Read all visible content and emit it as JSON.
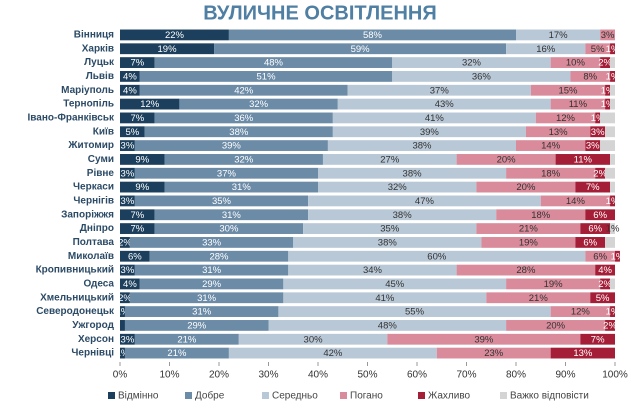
{
  "chart_data": {
    "type": "stacked-bar-horizontal",
    "title": "ВУЛИЧНЕ ОСВІТЛЕННЯ",
    "categories": [
      "Вінниця",
      "Харків",
      "Луцьк",
      "Львів",
      "Маріуполь",
      "Тернопіль",
      "Івано-Франківськ",
      "Київ",
      "Житомир",
      "Суми",
      "Рівне",
      "Черкаси",
      "Чернігів",
      "Запоріжжя",
      "Дніпро",
      "Полтава",
      "Миколаїв",
      "Кропивницький",
      "Одеса",
      "Хмельницький",
      "Северодонецьк",
      "Ужгород",
      "Херсон",
      "Чернівці"
    ],
    "series": [
      {
        "name": "Відмінно",
        "color": "#1b3f5c",
        "values": [
          22,
          19,
          7,
          4,
          4,
          12,
          7,
          5,
          3,
          9,
          3,
          9,
          3,
          7,
          7,
          2,
          6,
          3,
          4,
          2,
          1,
          1,
          3,
          1
        ],
        "value_labels": [
          "22%",
          "19%",
          "7%",
          "4%",
          "4%",
          "12%",
          "7%",
          "5%",
          "3%",
          "9%",
          "3%",
          "9%",
          "3%",
          "7%",
          "7%",
          "2%",
          "6%",
          "3%",
          "4%",
          "2%",
          "1%",
          null,
          "3%",
          "1%"
        ]
      },
      {
        "name": "Добре",
        "color": "#6b8ba7",
        "values": [
          58,
          59,
          48,
          51,
          42,
          32,
          36,
          38,
          39,
          32,
          37,
          31,
          35,
          31,
          30,
          33,
          28,
          31,
          29,
          31,
          31,
          29,
          21,
          21
        ],
        "value_labels": [
          "58%",
          "59%",
          "48%",
          "51%",
          "42%",
          "32%",
          "36%",
          "38%",
          "39%",
          "32%",
          "37%",
          "31%",
          "35%",
          "31%",
          "30%",
          "33%",
          "28%",
          "31%",
          "29%",
          "31%",
          "31%",
          "29%",
          "21%",
          "21%"
        ]
      },
      {
        "name": "Середньо",
        "color": "#b9c8d7",
        "values": [
          17,
          16,
          32,
          36,
          37,
          43,
          41,
          39,
          38,
          27,
          38,
          32,
          47,
          38,
          35,
          38,
          60,
          34,
          45,
          41,
          55,
          48,
          30,
          42
        ],
        "value_labels": [
          "17%",
          "16%",
          "32%",
          "36%",
          "37%",
          "43%",
          "41%",
          "39%",
          "38%",
          "27%",
          "38%",
          "32%",
          "47%",
          "38%",
          "35%",
          "38%",
          "60%",
          "34%",
          "45%",
          "41%",
          "55%",
          "48%",
          "30%",
          "42%"
        ]
      },
      {
        "name": "Погано",
        "color": "#d98b9b",
        "values": [
          3,
          5,
          10,
          8,
          15,
          11,
          12,
          13,
          14,
          20,
          18,
          20,
          14,
          18,
          21,
          19,
          6,
          28,
          19,
          21,
          12,
          20,
          39,
          23
        ],
        "value_labels": [
          "3%",
          "5%",
          "10%",
          "8%",
          "15%",
          "11%",
          "12%",
          "13%",
          "14%",
          "20%",
          "18%",
          "20%",
          "14%",
          "18%",
          "21%",
          "19%",
          "6%",
          "28%",
          "19%",
          "21%",
          "12%",
          "20%",
          "39%",
          "23%"
        ]
      },
      {
        "name": "Жахливо",
        "color": "#a51e37",
        "values": [
          0,
          1,
          2,
          1,
          1,
          1,
          1,
          3,
          3,
          11,
          2,
          7,
          1,
          6,
          6,
          6,
          1,
          4,
          2,
          5,
          1,
          2,
          7,
          13
        ],
        "value_labels": [
          null,
          "1%",
          "2%",
          "1%",
          "1%",
          "1%",
          "1%",
          "3%",
          "3%",
          "11%",
          "2%",
          "7%",
          "1%",
          "6%",
          "6%",
          "6%",
          "1%",
          "4%",
          "2%",
          "5%",
          "1%",
          "2%",
          "7%",
          "13%"
        ]
      },
      {
        "name": "Важко відповісти",
        "color": "#d4d4d4",
        "values": [
          0,
          0,
          1,
          0,
          1,
          1,
          3,
          2,
          3,
          1,
          2,
          1,
          0,
          0,
          1,
          2,
          0,
          0,
          1,
          0,
          0,
          0,
          0,
          0
        ],
        "value_labels": [
          null,
          null,
          null,
          null,
          null,
          null,
          null,
          null,
          null,
          null,
          null,
          null,
          null,
          null,
          "1%",
          null,
          null,
          null,
          null,
          null,
          null,
          null,
          null,
          null
        ]
      }
    ],
    "xlim": [
      0,
      100
    ],
    "xticks": [
      {
        "value": 0,
        "label": "0%"
      },
      {
        "value": 10,
        "label": "10%"
      },
      {
        "value": 20,
        "label": "20%"
      },
      {
        "value": 30,
        "label": "30%"
      },
      {
        "value": 40,
        "label": "40%"
      },
      {
        "value": 50,
        "label": "50%"
      },
      {
        "value": 60,
        "label": "60%"
      },
      {
        "value": 70,
        "label": "70%"
      },
      {
        "value": 80,
        "label": "80%"
      },
      {
        "value": 90,
        "label": "90%"
      },
      {
        "value": 100,
        "label": "100%"
      }
    ]
  }
}
